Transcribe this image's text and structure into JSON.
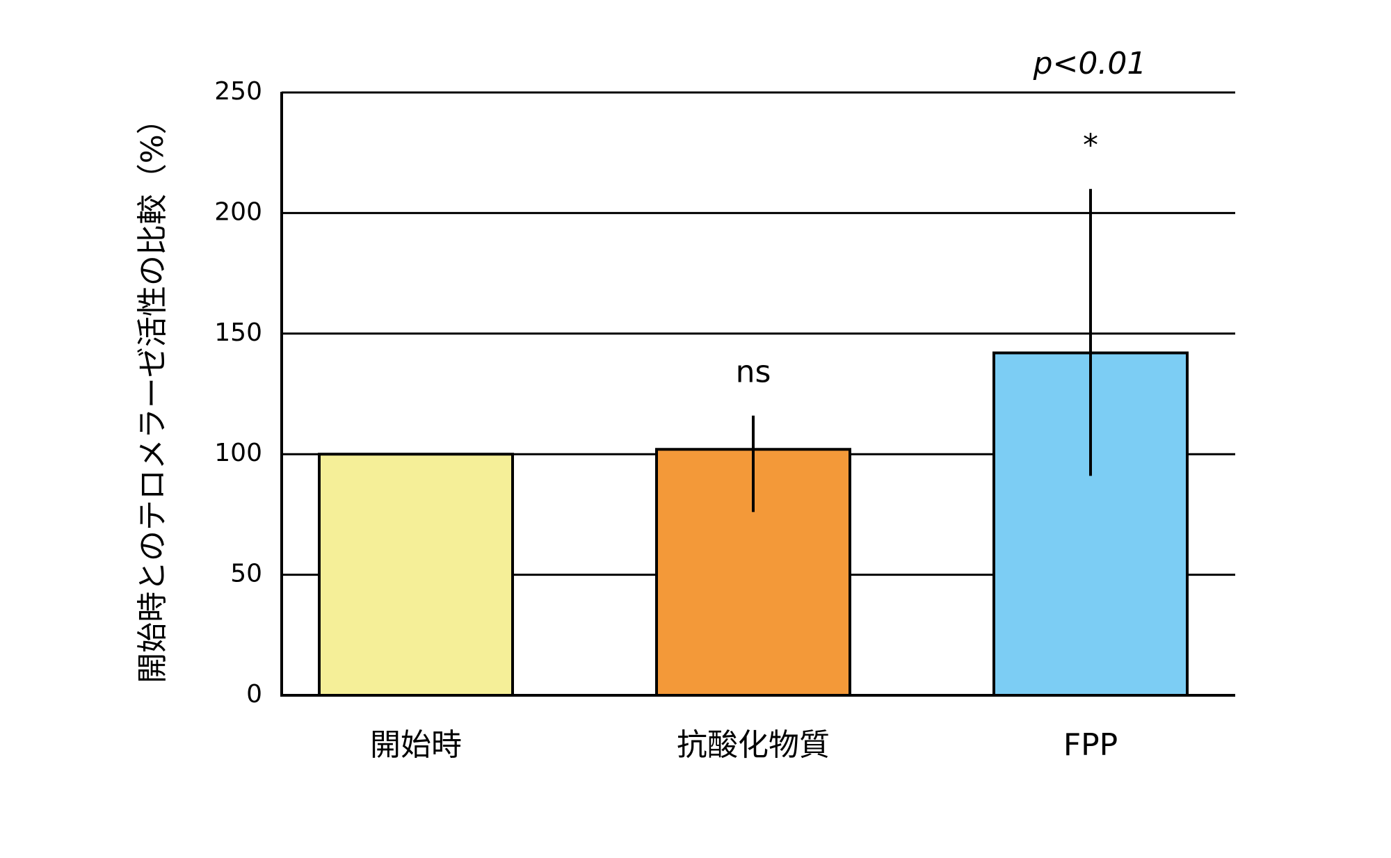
{
  "chart_data": {
    "type": "bar",
    "y_label": "開始時とのテロメラーゼ活性の比較（%）",
    "categories": [
      "開始時",
      "抗酸化物質",
      "FPP"
    ],
    "values": [
      100,
      102,
      142
    ],
    "errors_minus": [
      null,
      26,
      51
    ],
    "errors_plus": [
      null,
      14,
      68
    ],
    "colors": [
      "#f5ef98",
      "#f39939",
      "#7ccdf4"
    ],
    "bar_annotations": [
      null,
      "ns",
      "*"
    ],
    "significance": "p<0.01",
    "ylim": [
      0,
      250
    ],
    "yticks": [
      0,
      50,
      100,
      150,
      200,
      250
    ],
    "grid": true
  }
}
